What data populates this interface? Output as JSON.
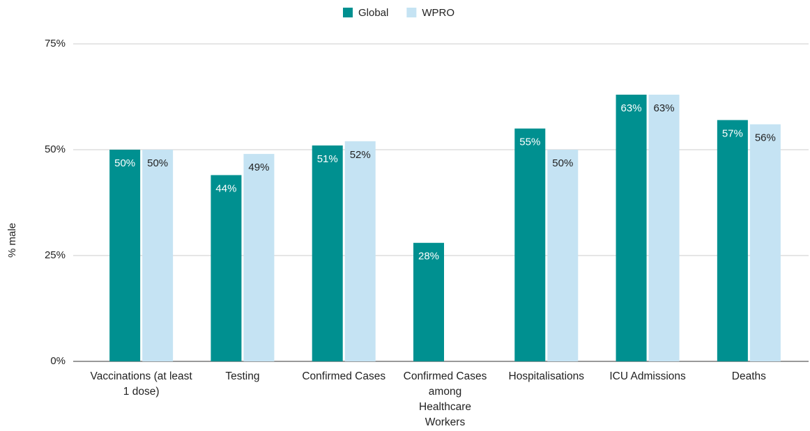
{
  "chart_data": {
    "type": "bar",
    "y_axis_label": "% male",
    "categories": [
      "Vaccinations (at least 1 dose)",
      "Testing",
      "Confirmed Cases",
      "Confirmed Cases among Healthcare Workers",
      "Hospitalisations",
      "ICU Admissions",
      "Deaths"
    ],
    "series": [
      {
        "name": "Global",
        "color": "#009090",
        "values": [
          50,
          44,
          51,
          28,
          55,
          63,
          57
        ],
        "value_labels": [
          "50%",
          "44%",
          "51%",
          "28%",
          "55%",
          "63%",
          "57%"
        ]
      },
      {
        "name": "WPRO",
        "color": "#c5e3f3",
        "values": [
          50,
          49,
          52,
          null,
          50,
          63,
          56
        ],
        "value_labels": [
          "50%",
          "49%",
          "52%",
          null,
          "50%",
          "63%",
          "56%"
        ]
      }
    ],
    "ylim": [
      0,
      75
    ],
    "yticks": [
      {
        "value": 0,
        "label": "0%"
      },
      {
        "value": 25,
        "label": "25%"
      },
      {
        "value": 50,
        "label": "50%"
      },
      {
        "value": 75,
        "label": "75%"
      }
    ],
    "grid": true,
    "legend": "top"
  }
}
